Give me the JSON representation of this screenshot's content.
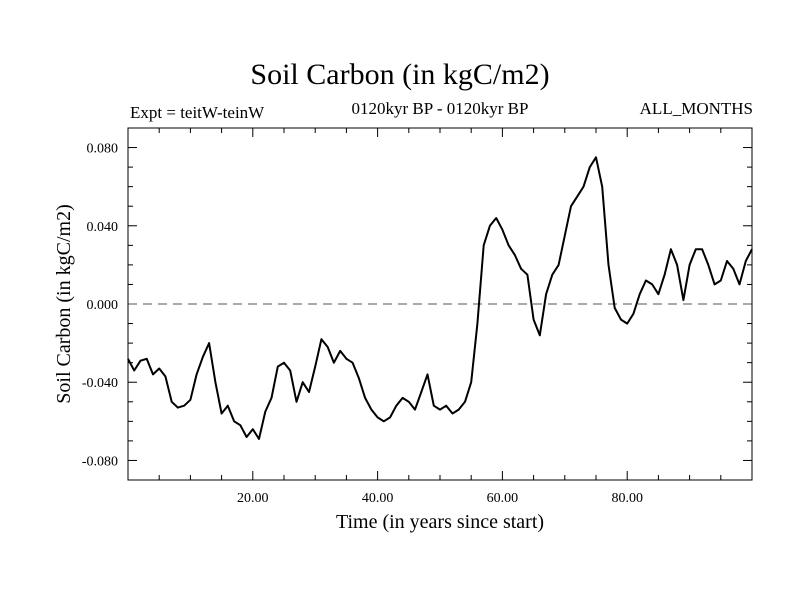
{
  "header": {
    "title": "Soil Carbon (in kgC/m2)",
    "expt": "Expt = teitW-teinW",
    "period": "0120kyr BP - 0120kyr BP",
    "months": "ALL_MONTHS"
  },
  "colors": {
    "line": "#000000",
    "zero_line": "#555555",
    "frame": "#000000",
    "background": "#ffffff"
  },
  "chart_data": {
    "type": "line",
    "title": "Soil Carbon (in kgC/m2)",
    "xlabel": "Time (in years since start)",
    "ylabel": "Soil Carbon (in kgC/m2)",
    "xlim": [
      0,
      100
    ],
    "ylim": [
      -0.09,
      0.09
    ],
    "xticks": [
      20,
      40,
      60,
      80
    ],
    "xtick_labels": [
      "20.00",
      "40.00",
      "60.00",
      "80.00"
    ],
    "yticks": [
      0.08,
      0.04,
      0.0,
      -0.04,
      -0.08
    ],
    "ytick_labels": [
      "0.080",
      "0.040",
      "0.000",
      "-0.040",
      "-0.080"
    ],
    "reference_line": {
      "y": 0.0,
      "style": "dashed"
    },
    "grid": false,
    "series": [
      {
        "x": [
          0,
          1,
          2,
          3,
          4,
          5,
          6,
          7,
          8,
          9,
          10,
          11,
          12,
          13,
          14,
          15,
          16,
          17,
          18,
          19,
          20,
          21,
          22,
          23,
          24,
          25,
          26,
          27,
          28,
          29,
          30,
          31,
          32,
          33,
          34,
          35,
          36,
          37,
          38,
          39,
          40,
          41,
          42,
          43,
          44,
          45,
          46,
          47,
          48,
          49,
          50,
          51,
          52,
          53,
          54,
          55,
          56,
          57,
          58,
          59,
          60,
          61,
          62,
          63,
          64,
          65,
          66,
          67,
          68,
          69,
          70,
          71,
          72,
          73,
          74,
          75,
          76,
          77,
          78,
          79,
          80,
          81,
          82,
          83,
          84,
          85,
          86,
          87,
          88,
          89,
          90,
          91,
          92,
          93,
          94,
          95,
          96,
          97,
          98,
          99,
          100
        ],
        "y": [
          -0.028,
          -0.034,
          -0.029,
          -0.028,
          -0.036,
          -0.033,
          -0.037,
          -0.05,
          -0.053,
          -0.052,
          -0.049,
          -0.036,
          -0.027,
          -0.02,
          -0.04,
          -0.056,
          -0.052,
          -0.06,
          -0.062,
          -0.068,
          -0.064,
          -0.069,
          -0.055,
          -0.048,
          -0.032,
          -0.03,
          -0.034,
          -0.05,
          -0.04,
          -0.045,
          -0.032,
          -0.018,
          -0.022,
          -0.03,
          -0.024,
          -0.028,
          -0.03,
          -0.038,
          -0.048,
          -0.054,
          -0.058,
          -0.06,
          -0.058,
          -0.052,
          -0.048,
          -0.05,
          -0.054,
          -0.045,
          -0.036,
          -0.052,
          -0.054,
          -0.052,
          -0.056,
          -0.054,
          -0.05,
          -0.04,
          -0.01,
          0.03,
          0.04,
          0.044,
          0.038,
          0.03,
          0.025,
          0.018,
          0.015,
          -0.008,
          -0.016,
          0.005,
          0.015,
          0.02,
          0.035,
          0.05,
          0.055,
          0.06,
          0.07,
          0.075,
          0.06,
          0.02,
          -0.002,
          -0.008,
          -0.01,
          -0.005,
          0.005,
          0.012,
          0.01,
          0.005,
          0.015,
          0.028,
          0.02,
          0.002,
          0.02,
          0.028,
          0.028,
          0.02,
          0.01,
          0.012,
          0.022,
          0.018,
          0.01,
          0.022,
          0.028
        ]
      }
    ]
  }
}
